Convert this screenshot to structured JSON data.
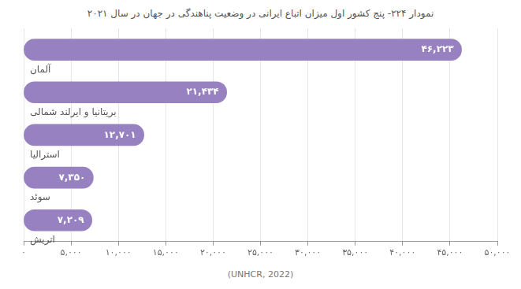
{
  "chart_data": {
    "type": "bar",
    "orientation": "horizontal",
    "title": "نمودار ۲۲۴- پنج کشور اول میزان اتباع ایرانی در وضعیت پناهندگی در جهان در سال ۲۰۲۱",
    "source": "(UNHCR, 2022)",
    "categories": [
      "آلمان",
      "بریتانیا و ایرلند شمالی",
      "استرالیا",
      "سوئد",
      "اتریش"
    ],
    "values": [
      46223,
      21434,
      12701,
      7350,
      7209
    ],
    "value_labels": [
      "۴۶,۲۲۳",
      "۲۱,۴۳۴",
      "۱۲,۷۰۱",
      "۷,۳۵۰",
      "۷,۲۰۹"
    ],
    "data_labels": true,
    "color": "#9781c0",
    "xlim": [
      0,
      50000
    ],
    "xticks": [
      {
        "value": 0,
        "label": "۰"
      },
      {
        "value": 5000,
        "label": "۵,۰۰۰"
      },
      {
        "value": 10000,
        "label": "۱۰,۰۰۰"
      },
      {
        "value": 15000,
        "label": "۱۵,۰۰۰"
      },
      {
        "value": 20000,
        "label": "۲۰,۰۰۰"
      },
      {
        "value": 25000,
        "label": "۲۵,۰۰۰"
      },
      {
        "value": 30000,
        "label": "۳۰,۰۰۰"
      },
      {
        "value": 35000,
        "label": "۳۵,۰۰۰"
      },
      {
        "value": 40000,
        "label": "۴۰,۰۰۰"
      },
      {
        "value": 45000,
        "label": "۴۵,۰۰۰"
      },
      {
        "value": 50000,
        "label": "۵۰,۰۰۰"
      }
    ],
    "grid": true
  }
}
